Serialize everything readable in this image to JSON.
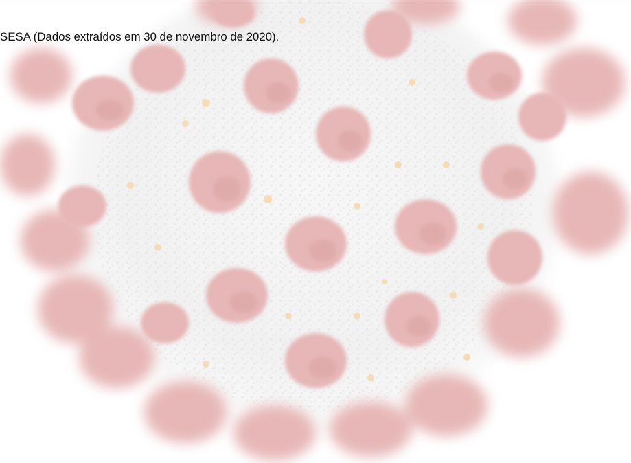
{
  "source_note": "SESA (Dados extraídos em 30 de novembro de 2020).",
  "background": {
    "icon": "coronavirus-illustration-icon",
    "body_color": "#e9e9e9",
    "spike_color": "#d98b8b",
    "spike_shadow_color": "#c56a6a",
    "dot_color": "#f2c88a"
  }
}
